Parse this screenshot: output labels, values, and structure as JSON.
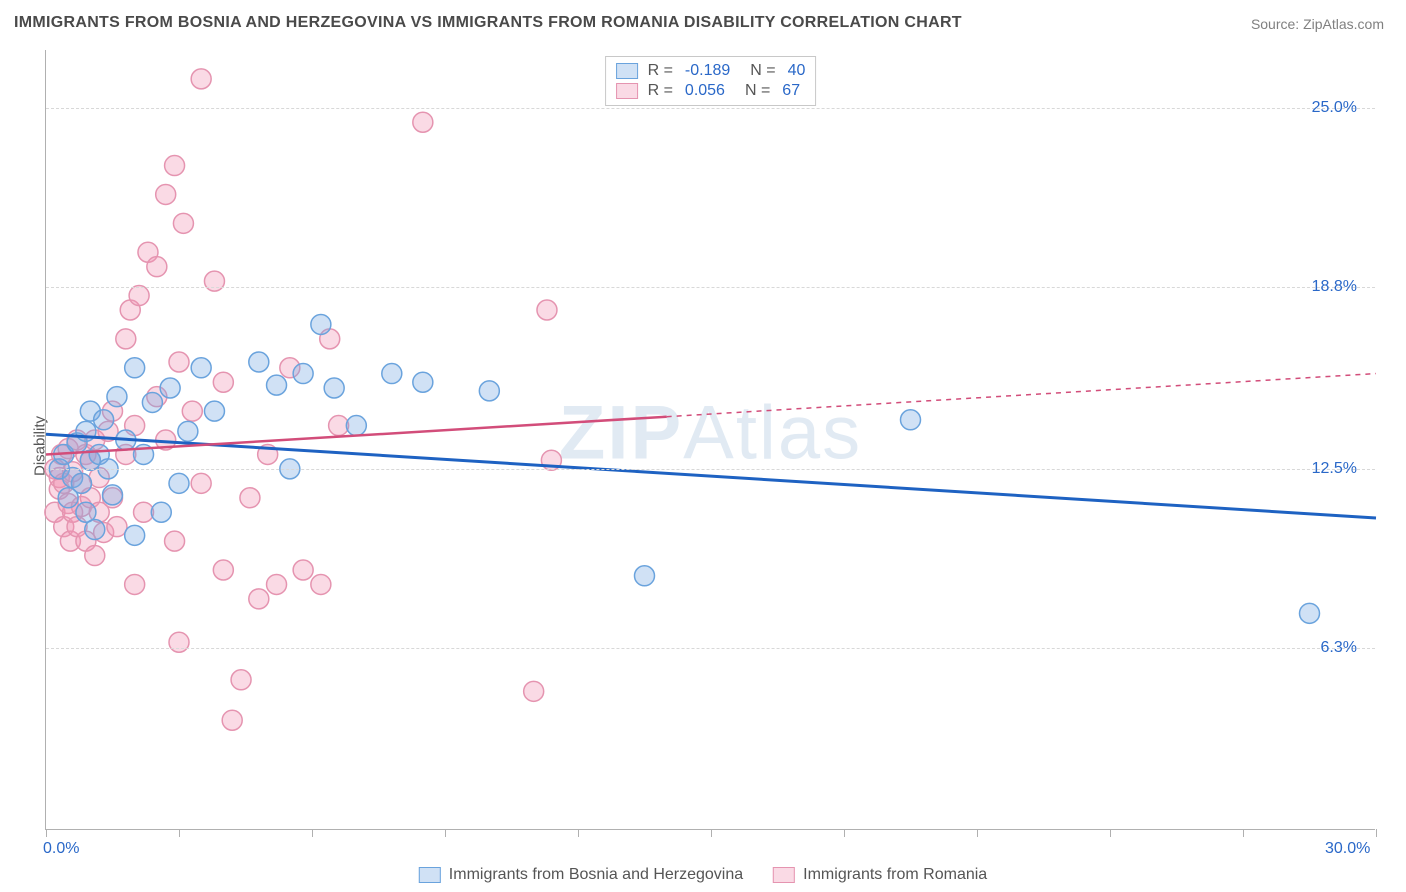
{
  "title": "IMMIGRANTS FROM BOSNIA AND HERZEGOVINA VS IMMIGRANTS FROM ROMANIA DISABILITY CORRELATION CHART",
  "source": "Source: ZipAtlas.com",
  "watermark": "ZIPAtlas",
  "ylabel": "Disability",
  "chart": {
    "type": "scatter",
    "background_color": "#ffffff",
    "grid_color": "#d8d8d8",
    "axis_color": "#b0b0b0",
    "tick_label_color": "#2a68c8",
    "xlim": [
      0,
      30
    ],
    "ylim": [
      0,
      27
    ],
    "x_ticks": [
      0,
      3,
      6,
      9,
      12,
      15,
      18,
      21,
      24,
      27,
      30
    ],
    "x_tick_labels": {
      "0": "0.0%",
      "30": "30.0%"
    },
    "y_gridlines": [
      6.3,
      12.5,
      18.8,
      25.0
    ],
    "y_tick_labels": [
      "6.3%",
      "12.5%",
      "18.8%",
      "25.0%"
    ],
    "series": [
      {
        "name": "Immigrants from Bosnia and Herzegovina",
        "fill_color": "rgba(120,170,225,0.35)",
        "stroke_color": "#6aa3dd",
        "trend_color": "#1e62c2",
        "trend_width": 3,
        "marker_radius": 10,
        "R": "-0.189",
        "N": "40",
        "trend": {
          "x1": 0,
          "y1": 13.7,
          "x2": 30,
          "y2": 10.8
        },
        "points": [
          [
            0.3,
            12.5
          ],
          [
            0.4,
            13.0
          ],
          [
            0.5,
            11.5
          ],
          [
            0.6,
            12.2
          ],
          [
            0.7,
            13.4
          ],
          [
            0.8,
            12.0
          ],
          [
            0.9,
            11.0
          ],
          [
            0.9,
            13.8
          ],
          [
            1.0,
            14.5
          ],
          [
            1.0,
            12.8
          ],
          [
            1.1,
            10.4
          ],
          [
            1.2,
            13.0
          ],
          [
            1.3,
            14.2
          ],
          [
            1.4,
            12.5
          ],
          [
            1.5,
            11.6
          ],
          [
            1.6,
            15.0
          ],
          [
            1.8,
            13.5
          ],
          [
            2.0,
            10.2
          ],
          [
            2.0,
            16.0
          ],
          [
            2.2,
            13.0
          ],
          [
            2.4,
            14.8
          ],
          [
            2.6,
            11.0
          ],
          [
            2.8,
            15.3
          ],
          [
            3.0,
            12.0
          ],
          [
            3.2,
            13.8
          ],
          [
            3.5,
            16.0
          ],
          [
            3.8,
            14.5
          ],
          [
            4.8,
            16.2
          ],
          [
            5.2,
            15.4
          ],
          [
            5.5,
            12.5
          ],
          [
            5.8,
            15.8
          ],
          [
            6.2,
            17.5
          ],
          [
            6.5,
            15.3
          ],
          [
            7.0,
            14.0
          ],
          [
            7.8,
            15.8
          ],
          [
            8.5,
            15.5
          ],
          [
            10.0,
            15.2
          ],
          [
            13.5,
            8.8
          ],
          [
            19.5,
            14.2
          ],
          [
            28.5,
            7.5
          ]
        ]
      },
      {
        "name": "Immigrants from Romania",
        "fill_color": "rgba(240,150,180,0.35)",
        "stroke_color": "#e594b0",
        "trend_color": "#d24d7a",
        "trend_width": 2.5,
        "marker_radius": 10,
        "R": "0.056",
        "N": "67",
        "trend_solid_to_x": 14,
        "trend": {
          "x1": 0,
          "y1": 13.0,
          "x2": 30,
          "y2": 15.8
        },
        "points": [
          [
            0.2,
            12.5
          ],
          [
            0.2,
            11.0
          ],
          [
            0.3,
            11.8
          ],
          [
            0.3,
            12.2
          ],
          [
            0.35,
            13.0
          ],
          [
            0.4,
            10.5
          ],
          [
            0.4,
            12.0
          ],
          [
            0.5,
            11.3
          ],
          [
            0.5,
            13.2
          ],
          [
            0.55,
            10.0
          ],
          [
            0.6,
            12.4
          ],
          [
            0.6,
            11.0
          ],
          [
            0.7,
            13.5
          ],
          [
            0.7,
            10.5
          ],
          [
            0.8,
            12.0
          ],
          [
            0.8,
            11.2
          ],
          [
            0.9,
            13.0
          ],
          [
            0.9,
            10.0
          ],
          [
            1.0,
            12.8
          ],
          [
            1.0,
            11.5
          ],
          [
            1.1,
            9.5
          ],
          [
            1.1,
            13.5
          ],
          [
            1.2,
            11.0
          ],
          [
            1.2,
            12.2
          ],
          [
            1.3,
            10.3
          ],
          [
            1.4,
            13.8
          ],
          [
            1.5,
            11.5
          ],
          [
            1.5,
            14.5
          ],
          [
            1.6,
            10.5
          ],
          [
            1.8,
            17.0
          ],
          [
            1.8,
            13.0
          ],
          [
            1.9,
            18.0
          ],
          [
            2.0,
            8.5
          ],
          [
            2.0,
            14.0
          ],
          [
            2.1,
            18.5
          ],
          [
            2.2,
            11.0
          ],
          [
            2.3,
            20.0
          ],
          [
            2.5,
            15.0
          ],
          [
            2.5,
            19.5
          ],
          [
            2.7,
            22.0
          ],
          [
            2.7,
            13.5
          ],
          [
            2.9,
            23.0
          ],
          [
            2.9,
            10.0
          ],
          [
            3.0,
            16.2
          ],
          [
            3.0,
            6.5
          ],
          [
            3.1,
            21.0
          ],
          [
            3.3,
            14.5
          ],
          [
            3.5,
            26.0
          ],
          [
            3.5,
            12.0
          ],
          [
            3.8,
            19.0
          ],
          [
            4.0,
            15.5
          ],
          [
            4.0,
            9.0
          ],
          [
            4.2,
            3.8
          ],
          [
            4.4,
            5.2
          ],
          [
            4.6,
            11.5
          ],
          [
            4.8,
            8.0
          ],
          [
            5.0,
            13.0
          ],
          [
            5.2,
            8.5
          ],
          [
            5.5,
            16.0
          ],
          [
            5.8,
            9.0
          ],
          [
            6.2,
            8.5
          ],
          [
            6.4,
            17.0
          ],
          [
            6.6,
            14.0
          ],
          [
            8.5,
            24.5
          ],
          [
            11.0,
            4.8
          ],
          [
            11.3,
            18.0
          ],
          [
            11.4,
            12.8
          ]
        ]
      }
    ]
  },
  "legend_top": {
    "R_label": "R =",
    "N_label": "N ="
  },
  "legend_bottom": {
    "items": [
      "Immigrants from Bosnia and Herzegovina",
      "Immigrants from Romania"
    ]
  }
}
